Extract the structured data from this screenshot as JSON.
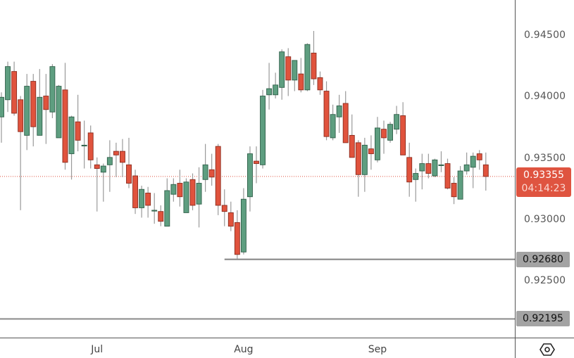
{
  "chart_data": {
    "type": "candlestick",
    "title": "",
    "ylim": [
      0.92043,
      0.94792
    ],
    "grid": false,
    "colors": {
      "up": "#5e9e80",
      "up_border": "#2f5f49",
      "down": "#e0533d",
      "down_border": "#8b2c1e",
      "wick": "#9a9a9a",
      "level_line": "#8f8f8f",
      "last_price": "#df5440"
    },
    "candles": [
      [
        0.9384,
        0.9404,
        0.9363,
        0.94
      ],
      [
        0.9398,
        0.9429,
        0.9388,
        0.9425
      ],
      [
        0.9421,
        0.9429,
        0.9385,
        0.9387
      ],
      [
        0.9398,
        0.9401,
        0.9308,
        0.9372
      ],
      [
        0.9369,
        0.9419,
        0.9357,
        0.9409
      ],
      [
        0.9413,
        0.9419,
        0.936,
        0.9376
      ],
      [
        0.9369,
        0.9423,
        0.9369,
        0.94
      ],
      [
        0.9401,
        0.9419,
        0.9362,
        0.939
      ],
      [
        0.9388,
        0.9427,
        0.9383,
        0.9425
      ],
      [
        0.9367,
        0.941,
        0.9367,
        0.9409
      ],
      [
        0.9406,
        0.9428,
        0.9341,
        0.9347
      ],
      [
        0.9354,
        0.9385,
        0.9333,
        0.9384
      ],
      [
        0.938,
        0.9402,
        0.9356,
        0.9365
      ],
      [
        0.9361,
        0.9381,
        0.9342,
        0.9361
      ],
      [
        0.9371,
        0.9377,
        0.9342,
        0.9349
      ],
      [
        0.9345,
        0.9351,
        0.9307,
        0.9342
      ],
      [
        0.9339,
        0.9346,
        0.9315,
        0.9344
      ],
      [
        0.9345,
        0.9365,
        0.9323,
        0.9351
      ],
      [
        0.9356,
        0.9363,
        0.9335,
        0.9353
      ],
      [
        0.9356,
        0.9366,
        0.9335,
        0.9347
      ],
      [
        0.9345,
        0.9367,
        0.9326,
        0.933
      ],
      [
        0.9336,
        0.9341,
        0.9305,
        0.931
      ],
      [
        0.931,
        0.9328,
        0.9302,
        0.9325
      ],
      [
        0.9322,
        0.9327,
        0.9302,
        0.9312
      ],
      [
        0.9308,
        0.9322,
        0.9297,
        0.9308
      ],
      [
        0.9307,
        0.9312,
        0.9295,
        0.9299
      ],
      [
        0.9295,
        0.9334,
        0.9295,
        0.9324
      ],
      [
        0.9321,
        0.9334,
        0.9315,
        0.9329
      ],
      [
        0.933,
        0.9341,
        0.9311,
        0.9319
      ],
      [
        0.9306,
        0.9334,
        0.9306,
        0.9331
      ],
      [
        0.9333,
        0.9338,
        0.9308,
        0.9312
      ],
      [
        0.9313,
        0.9343,
        0.9294,
        0.933
      ],
      [
        0.9333,
        0.9362,
        0.9323,
        0.9345
      ],
      [
        0.9341,
        0.9354,
        0.9328,
        0.9335
      ],
      [
        0.936,
        0.9362,
        0.9304,
        0.9312
      ],
      [
        0.9312,
        0.9325,
        0.9295,
        0.9307
      ],
      [
        0.9306,
        0.9315,
        0.9291,
        0.9295
      ],
      [
        0.9298,
        0.9308,
        0.9268,
        0.9272
      ],
      [
        0.9274,
        0.9326,
        0.9272,
        0.9317
      ],
      [
        0.9319,
        0.936,
        0.9307,
        0.9354
      ],
      [
        0.9348,
        0.936,
        0.933,
        0.9346
      ],
      [
        0.9345,
        0.9406,
        0.9342,
        0.9401
      ],
      [
        0.9402,
        0.9428,
        0.939,
        0.9407
      ],
      [
        0.9402,
        0.942,
        0.9399,
        0.941
      ],
      [
        0.9408,
        0.9439,
        0.9398,
        0.9437
      ],
      [
        0.9433,
        0.944,
        0.9401,
        0.9414
      ],
      [
        0.9414,
        0.943,
        0.9405,
        0.943
      ],
      [
        0.9419,
        0.9432,
        0.9404,
        0.9406
      ],
      [
        0.9406,
        0.9444,
        0.9405,
        0.9443
      ],
      [
        0.9436,
        0.9454,
        0.941,
        0.9415
      ],
      [
        0.9416,
        0.9421,
        0.9402,
        0.9406
      ],
      [
        0.9405,
        0.9413,
        0.9365,
        0.9368
      ],
      [
        0.9367,
        0.9394,
        0.9365,
        0.9386
      ],
      [
        0.9384,
        0.9402,
        0.9371,
        0.9393
      ],
      [
        0.9395,
        0.9405,
        0.9363,
        0.9363
      ],
      [
        0.9369,
        0.9386,
        0.9351,
        0.9351
      ],
      [
        0.9363,
        0.9365,
        0.9319,
        0.9337
      ],
      [
        0.9337,
        0.9367,
        0.9323,
        0.9361
      ],
      [
        0.9358,
        0.9369,
        0.9341,
        0.9354
      ],
      [
        0.9349,
        0.9384,
        0.9347,
        0.9375
      ],
      [
        0.9374,
        0.9381,
        0.9354,
        0.9367
      ],
      [
        0.9365,
        0.938,
        0.9363,
        0.9378
      ],
      [
        0.9374,
        0.9393,
        0.937,
        0.9386
      ],
      [
        0.9385,
        0.9396,
        0.9353,
        0.9353
      ],
      [
        0.9351,
        0.9363,
        0.9319,
        0.9331
      ],
      [
        0.9333,
        0.9342,
        0.9315,
        0.9338
      ],
      [
        0.934,
        0.9354,
        0.9325,
        0.9346
      ],
      [
        0.9346,
        0.9354,
        0.9334,
        0.9338
      ],
      [
        0.9336,
        0.935,
        0.9335,
        0.9349
      ],
      [
        0.9345,
        0.9356,
        0.9339,
        0.9345
      ],
      [
        0.9346,
        0.935,
        0.9325,
        0.9326
      ],
      [
        0.933,
        0.9335,
        0.9313,
        0.9319
      ],
      [
        0.9317,
        0.9344,
        0.9317,
        0.934
      ],
      [
        0.934,
        0.9355,
        0.9337,
        0.9345
      ],
      [
        0.9343,
        0.9355,
        0.9326,
        0.9352
      ],
      [
        0.9354,
        0.9357,
        0.9341,
        0.9349
      ],
      [
        0.9345,
        0.9355,
        0.9324,
        0.93355
      ]
    ],
    "candle_format": [
      "open",
      "high",
      "low",
      "close"
    ],
    "x_tick_labels": [
      {
        "label": "Jul",
        "candle_index": 15
      },
      {
        "label": "Aug",
        "candle_index": 38
      },
      {
        "label": "Sep",
        "candle_index": 59
      }
    ],
    "y_tick_labels": [
      "0.94500",
      "0.94000",
      "0.93500",
      "0.93000",
      "0.92500"
    ],
    "y_tick_values": [
      0.945,
      0.94,
      0.935,
      0.93,
      0.925
    ],
    "horizontal_levels": [
      {
        "value": 0.9268,
        "label": "0.92680",
        "start_candle_index": 35
      },
      {
        "value": 0.92195,
        "label": "0.92195",
        "start_candle_index": 0
      }
    ],
    "last_price": {
      "value": 0.93355,
      "label": "0.93355",
      "countdown": "04:14:23"
    }
  },
  "icons": {
    "settings": "settings-hexagon-icon"
  }
}
